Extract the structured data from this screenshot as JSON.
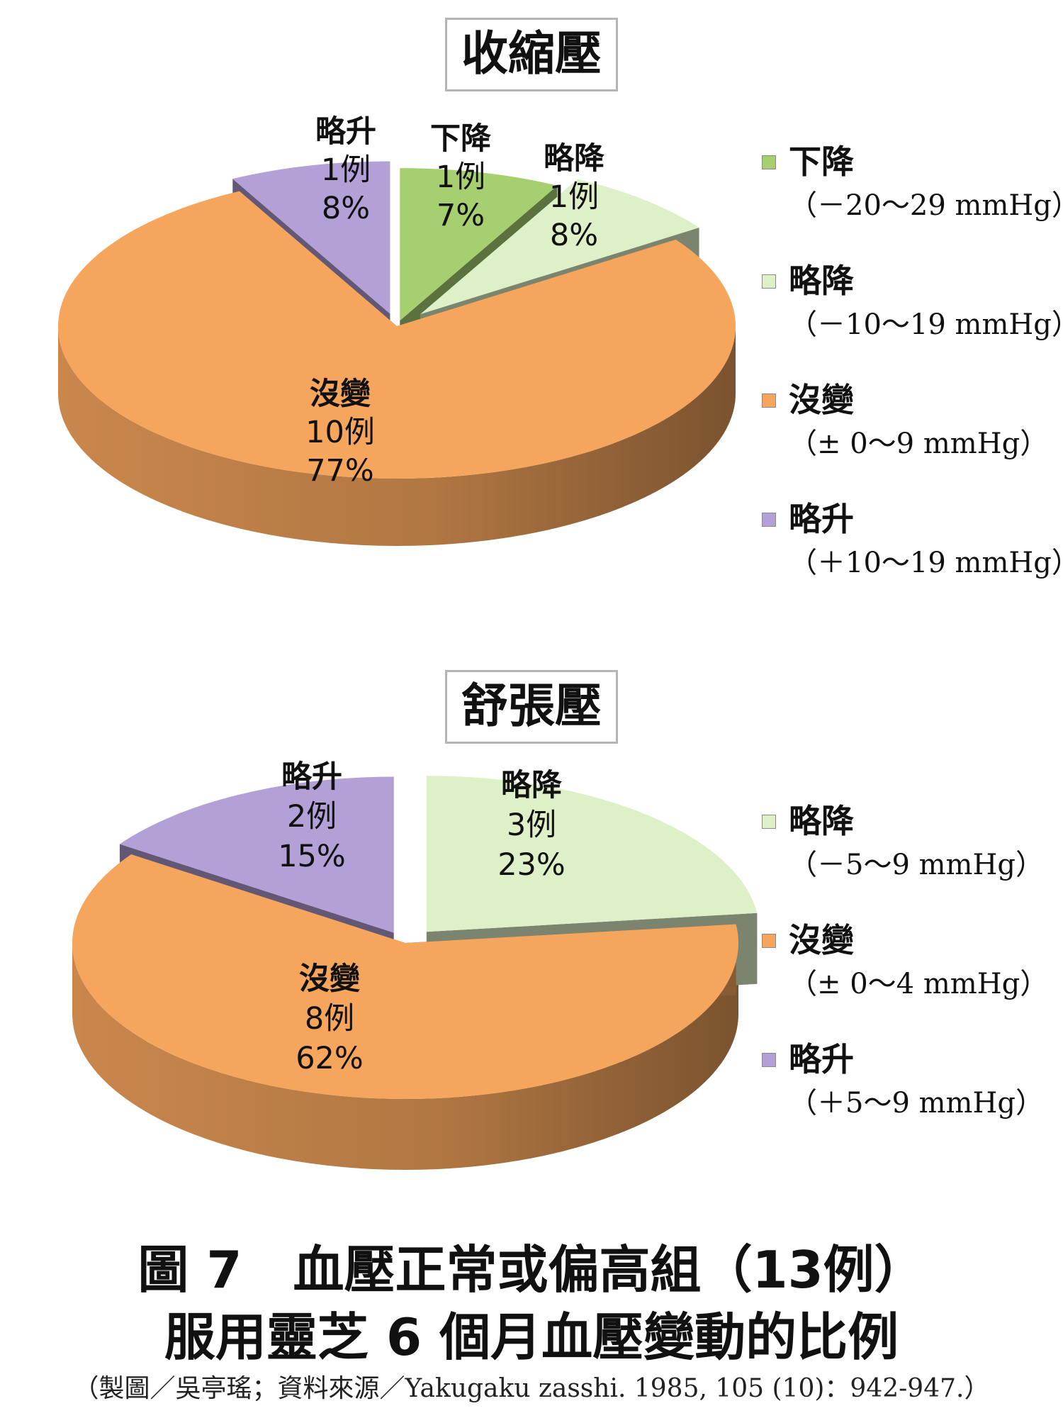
{
  "chart_data": [
    {
      "type": "pie",
      "title": "收縮壓",
      "slices": [
        {
          "label": "下降",
          "count_label": "1例",
          "percent_label": "7%",
          "value": 1,
          "percent": 7,
          "color": "#a6cf70"
        },
        {
          "label": "略降",
          "count_label": "1例",
          "percent_label": "8%",
          "value": 1,
          "percent": 8,
          "color": "#ddf0c8"
        },
        {
          "label": "沒變",
          "count_label": "10例",
          "percent_label": "77%",
          "value": 10,
          "percent": 77,
          "color": "#f6a55d"
        },
        {
          "label": "略升",
          "count_label": "1例",
          "percent_label": "8%",
          "value": 1,
          "percent": 8,
          "color": "#b3a0d6"
        }
      ],
      "legend": [
        {
          "name": "下降",
          "range": "（－20～29 mmHg）",
          "color": "#a6cf70"
        },
        {
          "name": "略降",
          "range": "（－10～19 mmHg）",
          "color": "#ddf0c8"
        },
        {
          "name": "沒變",
          "range": "（± 0～9 mmHg）",
          "color": "#f6a55d"
        },
        {
          "name": "略升",
          "range": "（＋10～19 mmHg）",
          "color": "#b3a0d6"
        }
      ],
      "legend_position": "right"
    },
    {
      "type": "pie",
      "title": "舒張壓",
      "slices": [
        {
          "label": "略降",
          "count_label": "3例",
          "percent_label": "23%",
          "value": 3,
          "percent": 23,
          "color": "#ddf0c8"
        },
        {
          "label": "沒變",
          "count_label": "8例",
          "percent_label": "62%",
          "value": 8,
          "percent": 62,
          "color": "#f6a55d"
        },
        {
          "label": "略升",
          "count_label": "2例",
          "percent_label": "15%",
          "value": 2,
          "percent": 15,
          "color": "#b3a0d6"
        }
      ],
      "legend": [
        {
          "name": "略降",
          "range": "（－5～9 mmHg）",
          "color": "#ddf0c8"
        },
        {
          "name": "沒變",
          "range": "（± 0～4 mmHg）",
          "color": "#f6a55d"
        },
        {
          "name": "略升",
          "range": "（＋5～9 mmHg）",
          "color": "#b3a0d6"
        }
      ],
      "legend_position": "right"
    }
  ],
  "caption": {
    "line1": "圖 7　血壓正常或偏高組（13例）",
    "line2": "服用靈芝 6 個月血壓變動的比例",
    "source": "（製圖／吳亭瑤；資料來源／Yakugaku zasshi. 1985, 105 (10)：942-947.）"
  }
}
